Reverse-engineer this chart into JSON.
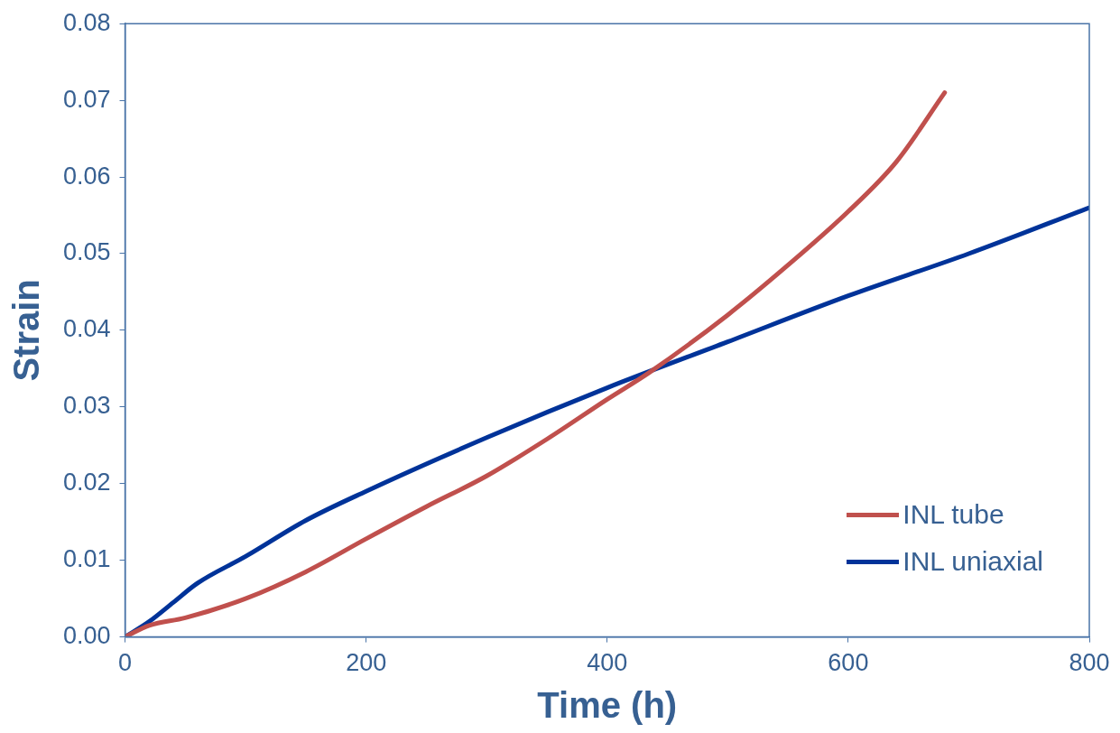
{
  "chart_data": {
    "type": "line",
    "xlabel": "Time (h)",
    "ylabel": "Strain",
    "xlim": [
      0,
      800
    ],
    "xticks": [
      0,
      200,
      400,
      600,
      800
    ],
    "ylim": [
      0,
      0.08
    ],
    "yticks": [
      {
        "value": 0,
        "label": "0.00"
      },
      {
        "value": 0.01,
        "label": "0.01"
      },
      {
        "value": 0.02,
        "label": "0.02"
      },
      {
        "value": 0.03,
        "label": "0.03"
      },
      {
        "value": 0.04,
        "label": "0.04"
      },
      {
        "value": 0.05,
        "label": "0.05"
      },
      {
        "value": 0.06,
        "label": "0.06"
      },
      {
        "value": 0.07,
        "label": "0.07"
      },
      {
        "value": 0.08,
        "label": "0.08"
      }
    ],
    "grid": false,
    "legend": "bottom right",
    "marker": "none",
    "line_style": "solid",
    "series": [
      {
        "name": "INL tube",
        "color": "#c0504d",
        "x": [
          0,
          20,
          50,
          100,
          150,
          200,
          250,
          300,
          350,
          400,
          435,
          500,
          550,
          600,
          640,
          680
        ],
        "values": [
          0,
          0.0015,
          0.0025,
          0.005,
          0.0085,
          0.0128,
          0.017,
          0.021,
          0.0258,
          0.031,
          0.0345,
          0.042,
          0.0485,
          0.0555,
          0.062,
          0.071
        ]
      },
      {
        "name": "INL uniaxial",
        "color": "#003399",
        "x": [
          0,
          20,
          40,
          60,
          100,
          150,
          200,
          300,
          400,
          500,
          600,
          700,
          800
        ],
        "values": [
          0,
          0.002,
          0.0045,
          0.007,
          0.0105,
          0.0152,
          0.019,
          0.026,
          0.0325,
          0.0385,
          0.0445,
          0.05,
          0.056
        ]
      }
    ]
  }
}
